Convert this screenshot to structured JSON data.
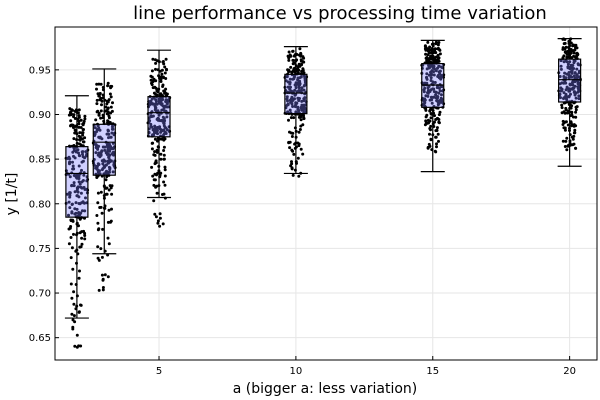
{
  "chart_data": {
    "type": "box",
    "title": "line performance vs processing time variation",
    "xlabel": "a (bigger a: less variation)",
    "ylabel": "y [1/t]",
    "xlim": [
      1.2,
      21.0
    ],
    "ylim": [
      0.625,
      0.998
    ],
    "xticks": [
      5,
      10,
      15,
      20
    ],
    "yticks": [
      0.65,
      0.7,
      0.75,
      0.8,
      0.85,
      0.9,
      0.95
    ],
    "grid": true,
    "legend": "none",
    "box_color": "#7878ff",
    "point_color": "#000000",
    "boxes": [
      {
        "a": 2,
        "q1": 0.785,
        "median": 0.834,
        "q3": 0.864,
        "whisker_low": 0.672,
        "whisker_high": 0.921,
        "min": 0.637,
        "max": 0.908
      },
      {
        "a": 3,
        "q1": 0.832,
        "median": 0.869,
        "q3": 0.889,
        "whisker_low": 0.744,
        "whisker_high": 0.951,
        "min": 0.7,
        "max": 0.935
      },
      {
        "a": 5,
        "q1": 0.875,
        "median": 0.902,
        "q3": 0.92,
        "whisker_low": 0.807,
        "whisker_high": 0.972,
        "min": 0.772,
        "max": 0.962
      },
      {
        "a": 10,
        "q1": 0.901,
        "median": 0.924,
        "q3": 0.945,
        "whisker_low": 0.834,
        "whisker_high": 0.976,
        "min": 0.824,
        "max": 0.975
      },
      {
        "a": 15,
        "q1": 0.908,
        "median": 0.933,
        "q3": 0.957,
        "whisker_low": 0.836,
        "whisker_high": 0.983,
        "min": 0.858,
        "max": 0.982
      },
      {
        "a": 20,
        "q1": 0.914,
        "median": 0.939,
        "q3": 0.962,
        "whisker_low": 0.842,
        "whisker_high": 0.985,
        "min": 0.86,
        "max": 0.985
      }
    ]
  }
}
